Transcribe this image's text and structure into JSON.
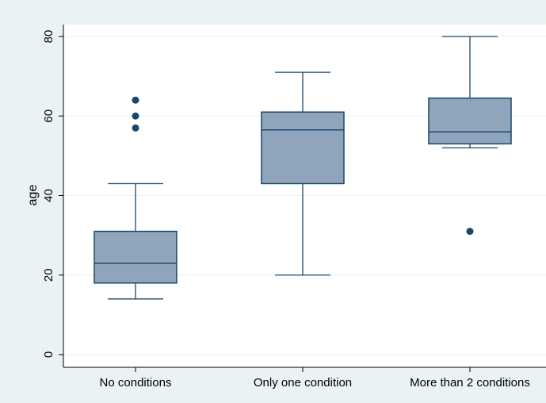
{
  "chart_data": {
    "type": "box",
    "title": "",
    "xlabel": "",
    "ylabel": "age",
    "ylim": [
      0,
      80
    ],
    "yticks": [
      0,
      20,
      40,
      60,
      80
    ],
    "categories": [
      "No conditions",
      "Only one condition",
      "More than 2 conditions"
    ],
    "boxes": [
      {
        "category": "No conditions",
        "whisker_low": 14,
        "q1": 18,
        "median": 23,
        "q3": 31,
        "whisker_high": 43,
        "outliers": [
          57,
          60,
          64
        ]
      },
      {
        "category": "Only one condition",
        "whisker_low": 20,
        "q1": 43,
        "median": 56.5,
        "q3": 61,
        "whisker_high": 71,
        "outliers": []
      },
      {
        "category": "More than 2 conditions",
        "whisker_low": 52,
        "q1": 53,
        "median": 56,
        "q3": 64.5,
        "whisker_high": 80,
        "outliers": [
          31
        ]
      }
    ],
    "grid": true,
    "colors": {
      "box_fill": "#90a5bb",
      "box_stroke": "#1a476f",
      "outlier": "#1a476f",
      "grid": "#eaf2f3",
      "plot_bg": "#ffffff",
      "page_bg": "#eaf2f3"
    }
  }
}
